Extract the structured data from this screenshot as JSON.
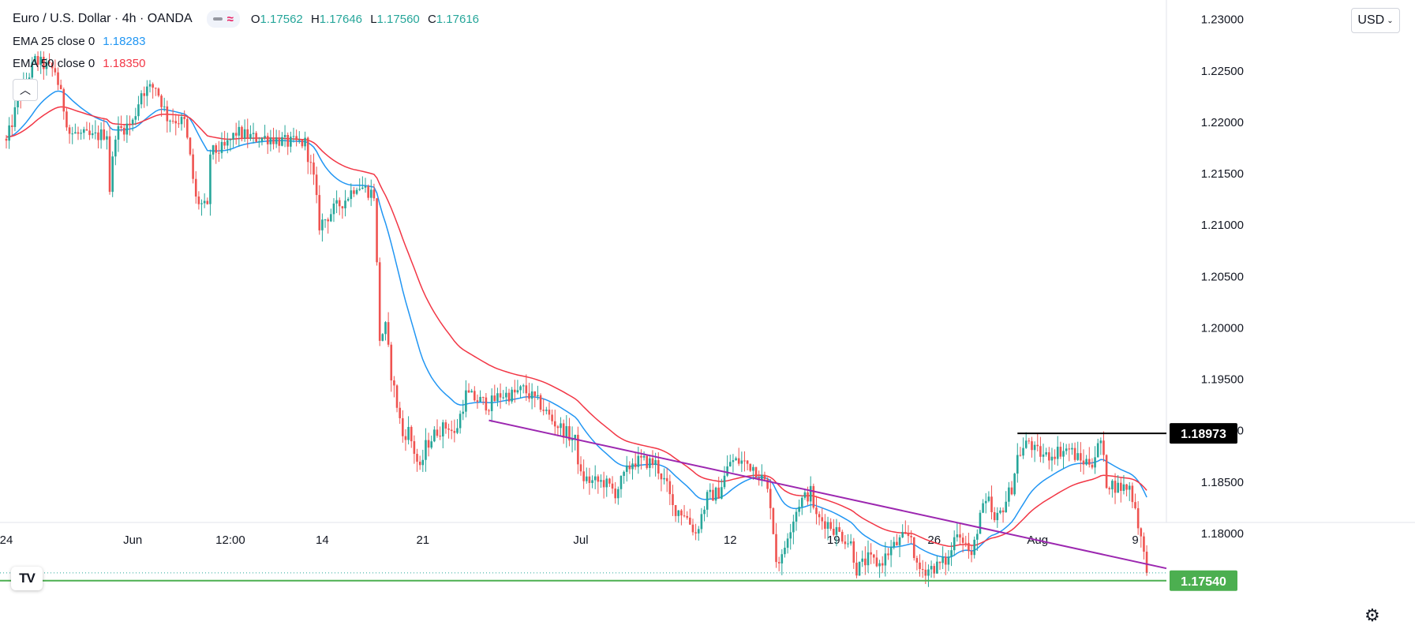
{
  "header": {
    "title": "Euro / U.S. Dollar · 4h · OANDA",
    "ohlc": [
      {
        "key": "O",
        "value": "1.17562"
      },
      {
        "key": "H",
        "value": "1.17646"
      },
      {
        "key": "L",
        "value": "1.17560"
      },
      {
        "key": "C",
        "value": "1.17616"
      }
    ]
  },
  "indicators": [
    {
      "label": "EMA 25 close 0",
      "value": "1.18283",
      "color": "#2196f3"
    },
    {
      "label": "EMA 50 close 0",
      "value": "1.18350",
      "color": "#f23645"
    }
  ],
  "currency_button": "USD",
  "collapse_icon": "chevron-up-icon",
  "logo_text": "TV",
  "settings_icon": "gear-icon",
  "chart_data": {
    "type": "candlestick",
    "title": "Euro / U.S. Dollar",
    "ylim": [
      1.1707,
      1.2319
    ],
    "y_ticks": [
      {
        "value": 1.23,
        "label": "1.23000"
      },
      {
        "value": 1.225,
        "label": "1.22500"
      },
      {
        "value": 1.22,
        "label": "1.22000"
      },
      {
        "value": 1.215,
        "label": "1.21500"
      },
      {
        "value": 1.21,
        "label": "1.21000"
      },
      {
        "value": 1.205,
        "label": "1.20500"
      },
      {
        "value": 1.2,
        "label": "1.20000"
      },
      {
        "value": 1.195,
        "label": "1.19500"
      },
      {
        "value": 1.19,
        "label": "1.19000"
      },
      {
        "value": 1.185,
        "label": "1.18500"
      },
      {
        "value": 1.18,
        "label": "1.18000"
      }
    ],
    "x_ticks": [
      {
        "label": "24",
        "bar": 0
      },
      {
        "label": "Jun",
        "bar": 44
      },
      {
        "label": "12:00",
        "bar": 78
      },
      {
        "label": "14",
        "bar": 110
      },
      {
        "label": "21",
        "bar": 145
      },
      {
        "label": "Jul",
        "bar": 200
      },
      {
        "label": "12",
        "bar": 252
      },
      {
        "label": "19",
        "bar": 288
      },
      {
        "label": "26",
        "bar": 323
      },
      {
        "label": "Aug",
        "bar": 359
      },
      {
        "label": "9",
        "bar": 393
      }
    ],
    "path": [
      [
        0,
        1.218
      ],
      [
        4,
        1.222
      ],
      [
        10,
        1.226
      ],
      [
        17,
        1.225
      ],
      [
        22,
        1.219
      ],
      [
        30,
        1.2185
      ],
      [
        35,
        1.219
      ],
      [
        36,
        1.2135
      ],
      [
        38,
        1.219
      ],
      [
        44,
        1.22
      ],
      [
        47,
        1.223
      ],
      [
        52,
        1.2235
      ],
      [
        56,
        1.2205
      ],
      [
        62,
        1.22
      ],
      [
        64,
        1.2165
      ],
      [
        66,
        1.2125
      ],
      [
        70,
        1.2115
      ],
      [
        71,
        1.217
      ],
      [
        76,
        1.2175
      ],
      [
        80,
        1.219
      ],
      [
        86,
        1.2185
      ],
      [
        92,
        1.2185
      ],
      [
        98,
        1.218
      ],
      [
        104,
        1.218
      ],
      [
        107,
        1.2145
      ],
      [
        109,
        1.21
      ],
      [
        114,
        1.2115
      ],
      [
        118,
        1.2125
      ],
      [
        122,
        1.214
      ],
      [
        128,
        1.213
      ],
      [
        130,
        1.199
      ],
      [
        132,
        1.2
      ],
      [
        134,
        1.1955
      ],
      [
        138,
        1.1895
      ],
      [
        140,
        1.19
      ],
      [
        144,
        1.186
      ],
      [
        146,
        1.1885
      ],
      [
        150,
        1.19
      ],
      [
        154,
        1.1905
      ],
      [
        156,
        1.1895
      ],
      [
        160,
        1.1935
      ],
      [
        164,
        1.193
      ],
      [
        168,
        1.1925
      ],
      [
        172,
        1.1935
      ],
      [
        176,
        1.1935
      ],
      [
        180,
        1.194
      ],
      [
        186,
        1.1925
      ],
      [
        190,
        1.191
      ],
      [
        194,
        1.19
      ],
      [
        198,
        1.189
      ],
      [
        200,
        1.1855
      ],
      [
        204,
        1.185
      ],
      [
        208,
        1.185
      ],
      [
        212,
        1.184
      ],
      [
        214,
        1.185
      ],
      [
        218,
        1.187
      ],
      [
        222,
        1.187
      ],
      [
        226,
        1.1868
      ],
      [
        230,
        1.1845
      ],
      [
        232,
        1.1825
      ],
      [
        236,
        1.182
      ],
      [
        240,
        1.18
      ],
      [
        244,
        1.1835
      ],
      [
        248,
        1.184
      ],
      [
        250,
        1.1855
      ],
      [
        252,
        1.187
      ],
      [
        256,
        1.187
      ],
      [
        260,
        1.1865
      ],
      [
        264,
        1.185
      ],
      [
        266,
        1.183
      ],
      [
        268,
        1.1775
      ],
      [
        270,
        1.1775
      ],
      [
        272,
        1.18
      ],
      [
        276,
        1.183
      ],
      [
        280,
        1.184
      ],
      [
        282,
        1.1815
      ],
      [
        286,
        1.181
      ],
      [
        290,
        1.18
      ],
      [
        294,
        1.179
      ],
      [
        296,
        1.1765
      ],
      [
        300,
        1.1775
      ],
      [
        304,
        1.177
      ],
      [
        308,
        1.1785
      ],
      [
        312,
        1.1795
      ],
      [
        315,
        1.1798
      ],
      [
        317,
        1.1765
      ],
      [
        320,
        1.1765
      ],
      [
        324,
        1.1768
      ],
      [
        328,
        1.1775
      ],
      [
        331,
        1.1805
      ],
      [
        334,
        1.179
      ],
      [
        336,
        1.1775
      ],
      [
        339,
        1.182
      ],
      [
        342,
        1.183
      ],
      [
        344,
        1.181
      ],
      [
        346,
        1.182
      ],
      [
        350,
        1.1845
      ],
      [
        352,
        1.1875
      ],
      [
        356,
        1.189
      ],
      [
        358,
        1.188
      ],
      [
        362,
        1.1875
      ],
      [
        366,
        1.188
      ],
      [
        370,
        1.1882
      ],
      [
        374,
        1.187
      ],
      [
        378,
        1.187
      ],
      [
        381,
        1.189
      ],
      [
        383,
        1.185
      ],
      [
        387,
        1.1845
      ],
      [
        391,
        1.1845
      ],
      [
        393,
        1.1825
      ],
      [
        395,
        1.1795
      ],
      [
        397,
        1.1761
      ]
    ],
    "ema25_final": 1.18283,
    "ema50_final": 1.1835,
    "trendline": {
      "from": {
        "bar": 168,
        "value": 1.191
      },
      "to": {
        "bar": 406,
        "value": 1.1766
      },
      "color": "#9c27b0"
    },
    "resistance": {
      "from_bar": 352,
      "value": 1.18973,
      "label": "1.18973",
      "color": "#000000"
    },
    "support": {
      "value": 1.1754,
      "label": "1.17540",
      "color": "#4caf50"
    },
    "last_price": 1.17616,
    "up_color": "#26a69a",
    "down_color": "#ef5350"
  }
}
